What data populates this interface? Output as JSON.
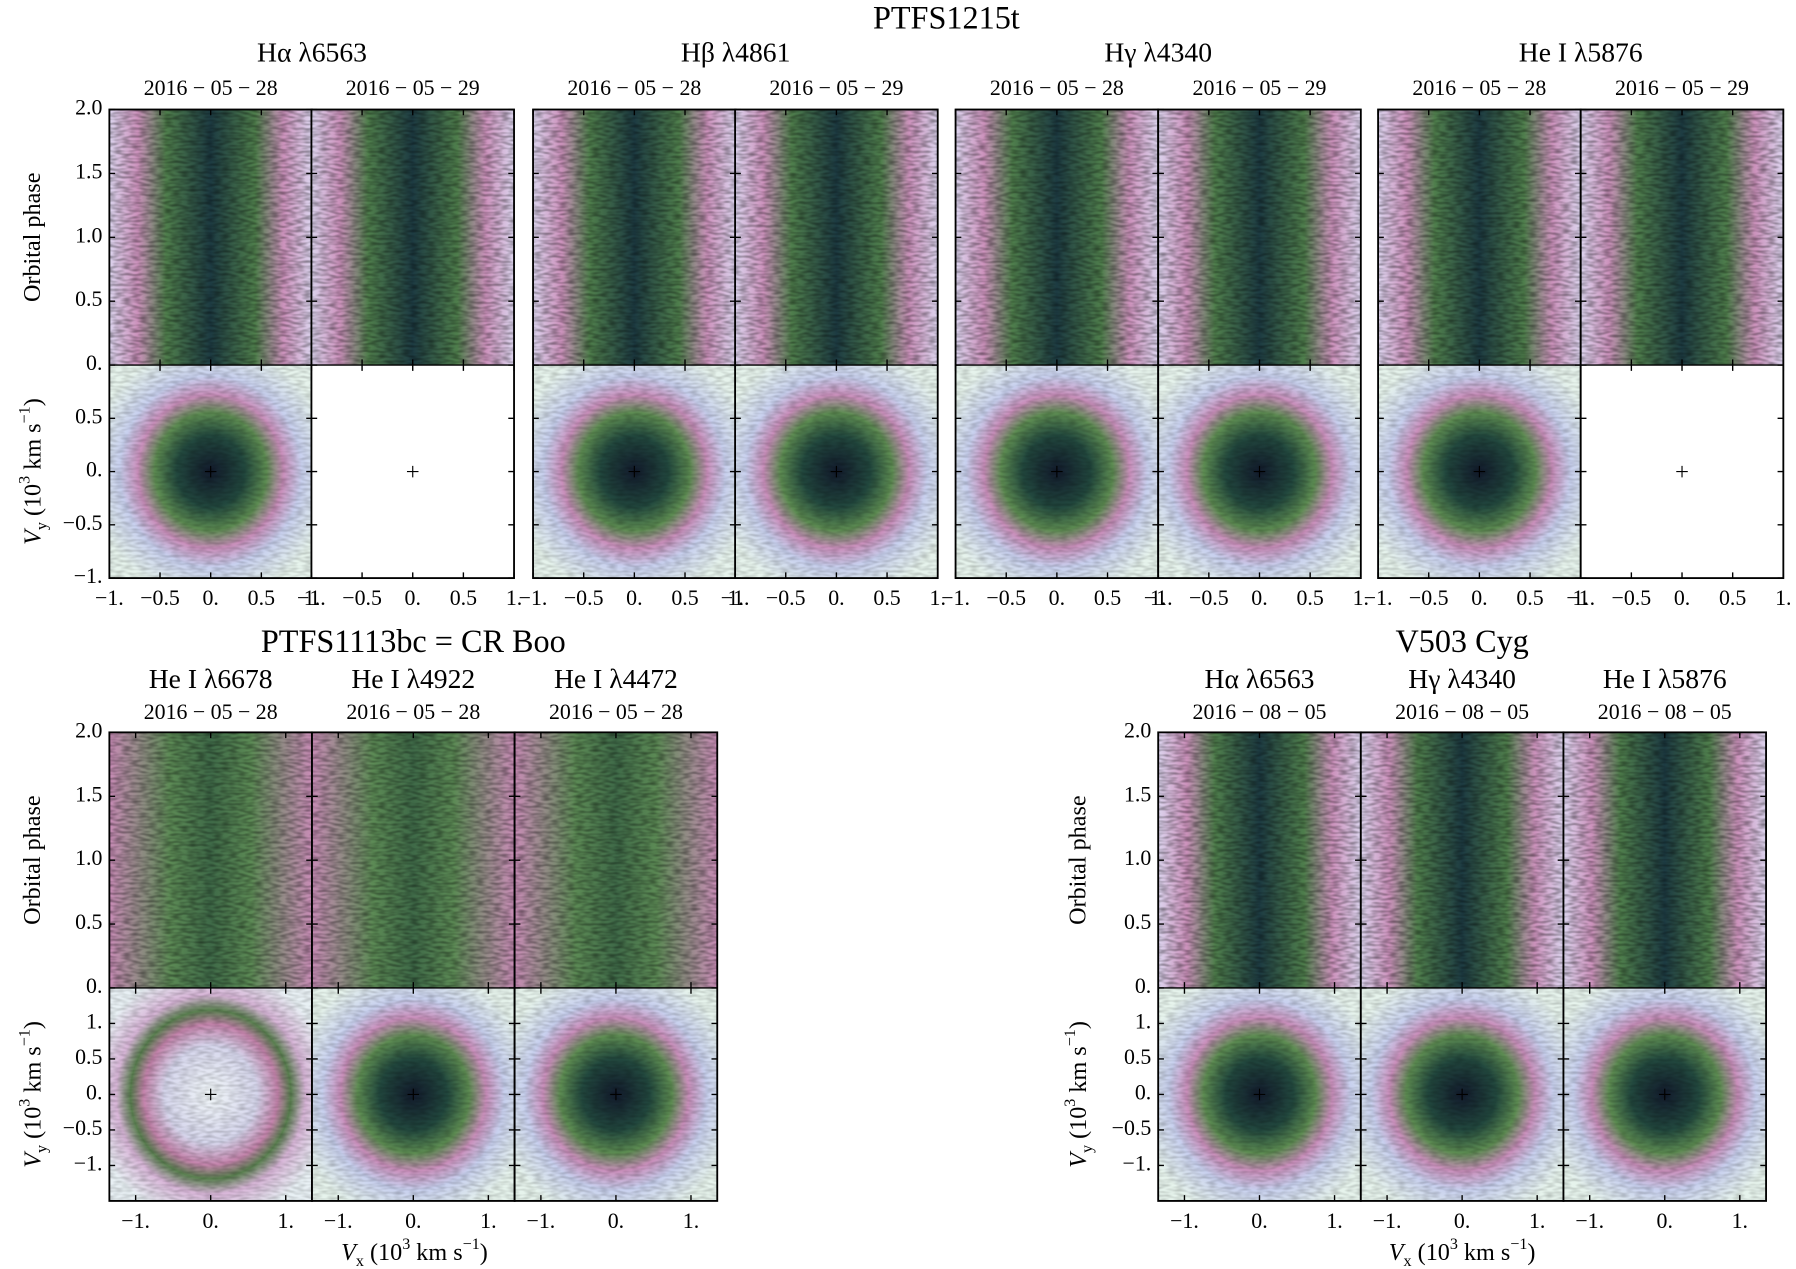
{
  "chart_data": [
    {
      "type": "tomogram",
      "title": "PTFS1215t",
      "lines": [
        {
          "name": "Hα λ6563",
          "dates": [
            "2016 − 05 − 28",
            "2016 − 05 − 29"
          ]
        },
        {
          "name": "Hβ λ4861",
          "dates": [
            "2016 − 05 − 28",
            "2016 − 05 − 29"
          ]
        },
        {
          "name": "Hγ λ4340",
          "dates": [
            "2016 − 05 − 28",
            "2016 − 05 − 29"
          ]
        },
        {
          "name": "He I λ5876",
          "dates": [
            "2016 − 05 − 28",
            "2016 − 05 − 29"
          ]
        }
      ],
      "ylabel": "Orbital phase",
      "ylim": [
        0,
        2
      ],
      "yticks": [
        {
          "value": 0,
          "label": "0."
        },
        0.5,
        {
          "value": 1,
          "label": "1.0"
        },
        1.5,
        {
          "value": 2,
          "label": "2.0"
        }
      ],
      "vylabel": [
        "V",
        "y",
        " (10",
        "3",
        " km s",
        "−1",
        ")"
      ],
      "vylim": [
        -1,
        1
      ],
      "vyticks": [
        {
          "value": -1,
          "label": "−1."
        },
        {
          "value": -0.5,
          "label": "−0.5"
        },
        {
          "value": 0,
          "label": "0."
        },
        0.5
      ],
      "xlim": [
        -1,
        1
      ],
      "xticks": [
        {
          "value": -1,
          "label": "−1."
        },
        {
          "value": -0.5,
          "label": "−0.5"
        },
        {
          "value": 0,
          "label": "0."
        },
        0.5,
        {
          "value": 1,
          "label": "1."
        }
      ]
    },
    {
      "type": "tomogram",
      "title": "PTFS1113bc = CR Boo",
      "lines": [
        {
          "name": "He I λ6678",
          "dates": [
            "2016 − 05 − 28"
          ]
        },
        {
          "name": "He I λ4922",
          "dates": [
            "2016 − 05 − 28"
          ]
        },
        {
          "name": "He I λ4472",
          "dates": [
            "2016 − 05 − 28"
          ]
        }
      ],
      "ylabel": "Orbital phase",
      "ylim": [
        0,
        2
      ],
      "yticks": [
        {
          "value": 0,
          "label": "0."
        },
        0.5,
        {
          "value": 1,
          "label": "1.0"
        },
        1.5,
        {
          "value": 2,
          "label": "2.0"
        }
      ],
      "vylabel": [
        "V",
        "y",
        " (10",
        "3",
        " km s",
        "−1",
        ")"
      ],
      "vylim": [
        -1.5,
        1.5
      ],
      "vyticks": [
        {
          "value": -1,
          "label": "−1."
        },
        {
          "value": -0.5,
          "label": "−0.5"
        },
        {
          "value": 0,
          "label": "0."
        },
        0.5,
        {
          "value": 1,
          "label": "1."
        }
      ],
      "xlim": [
        -1.35,
        1.35
      ],
      "xticks": [
        {
          "value": -1,
          "label": "−1."
        },
        {
          "value": 0,
          "label": "0."
        },
        {
          "value": 1,
          "label": "1."
        }
      ],
      "xlabel": [
        "V",
        "x",
        " (10",
        "3",
        " km s",
        "−1",
        ")"
      ]
    },
    {
      "type": "tomogram",
      "title": "V503 Cyg",
      "lines": [
        {
          "name": "Hα λ6563",
          "dates": [
            "2016 − 08 − 05"
          ]
        },
        {
          "name": "Hγ λ4340",
          "dates": [
            "2016 − 08 − 05"
          ]
        },
        {
          "name": "He I λ5876",
          "dates": [
            "2016 − 08 − 05"
          ]
        }
      ],
      "ylabel": "Orbital phase",
      "ylim": [
        0,
        2
      ],
      "yticks": [
        {
          "value": 0,
          "label": "0."
        },
        0.5,
        {
          "value": 1,
          "label": "1.0"
        },
        1.5,
        {
          "value": 2,
          "label": "2.0"
        }
      ],
      "vylabel": [
        "V",
        "y",
        " (10",
        "3",
        " km s",
        "−1",
        ")"
      ],
      "vylim": [
        -1.5,
        1.5
      ],
      "vyticks": [
        {
          "value": -1,
          "label": "−1."
        },
        {
          "value": -0.5,
          "label": "−0.5"
        },
        {
          "value": 0,
          "label": "0."
        },
        0.5,
        {
          "value": 1,
          "label": "1."
        }
      ],
      "xlim": [
        -1.35,
        1.35
      ],
      "xticks": [
        {
          "value": -1,
          "label": "−1."
        },
        {
          "value": 0,
          "label": "0."
        },
        {
          "value": 1,
          "label": "1."
        }
      ],
      "xlabel": [
        "V",
        "x",
        " (10",
        "3",
        " km s",
        "−1",
        ")"
      ]
    }
  ]
}
